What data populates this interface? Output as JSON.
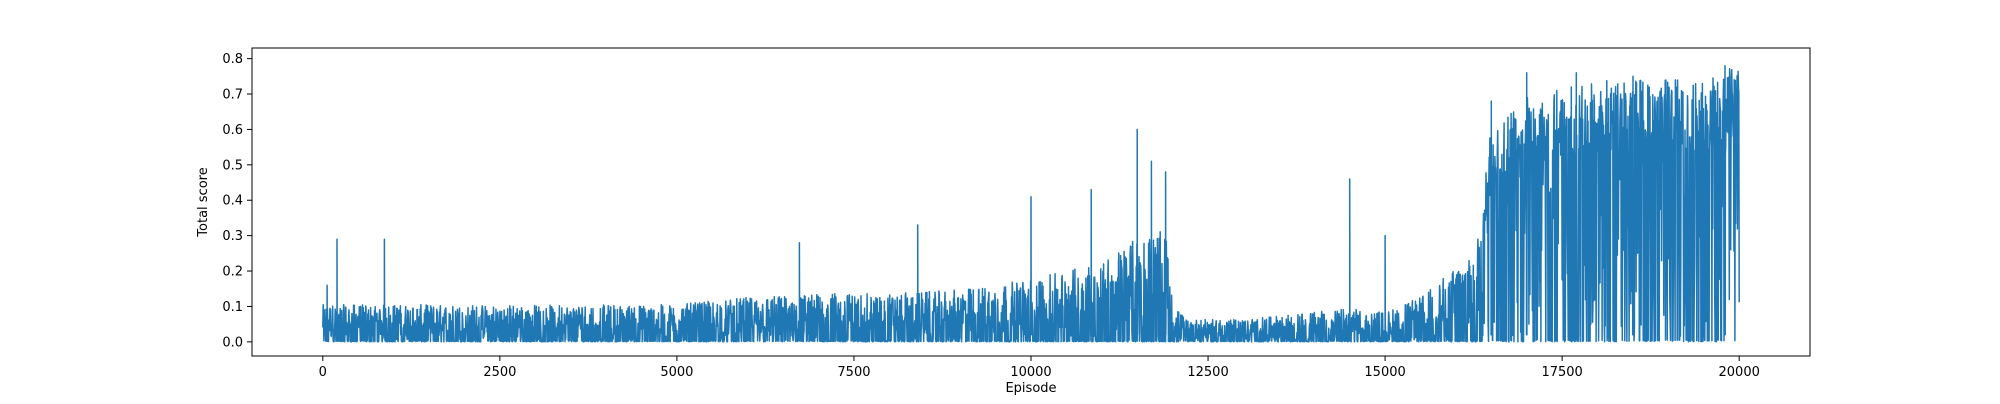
{
  "chart_data": {
    "type": "line",
    "title": "",
    "xlabel": "Episode",
    "ylabel": "Total score",
    "xlim": [
      -1000,
      21000
    ],
    "ylim": [
      -0.04,
      0.83
    ],
    "xticks": [
      0,
      2500,
      5000,
      7500,
      10000,
      12500,
      15000,
      17500,
      20000
    ],
    "xtick_labels": [
      "0",
      "2500",
      "5000",
      "7500",
      "10000",
      "12500",
      "15000",
      "17500",
      "20000"
    ],
    "yticks": [
      0.0,
      0.1,
      0.2,
      0.3,
      0.4,
      0.5,
      0.6,
      0.7,
      0.8
    ],
    "ytick_labels": [
      "0.0",
      "0.1",
      "0.2",
      "0.3",
      "0.4",
      "0.5",
      "0.6",
      "0.7",
      "0.8"
    ],
    "grid": false,
    "legend": "none",
    "series_color": "#1f77b4",
    "x_range": [
      0,
      20000
    ],
    "envelope": {
      "x": [
        0,
        1000,
        2000,
        3000,
        4000,
        5000,
        6000,
        7000,
        8000,
        9000,
        10000,
        10500,
        11000,
        11500,
        11900,
        12000,
        12200,
        13000,
        14000,
        14500,
        15000,
        15500,
        16000,
        16300,
        16500,
        17000,
        17500,
        18000,
        18500,
        19000,
        19500,
        20000
      ],
      "typical_upper": [
        0.1,
        0.1,
        0.1,
        0.1,
        0.1,
        0.1,
        0.12,
        0.13,
        0.13,
        0.14,
        0.17,
        0.19,
        0.22,
        0.28,
        0.3,
        0.1,
        0.06,
        0.06,
        0.08,
        0.09,
        0.08,
        0.12,
        0.2,
        0.28,
        0.58,
        0.66,
        0.69,
        0.7,
        0.71,
        0.71,
        0.72,
        0.74
      ]
    },
    "peaks": [
      {
        "x": 60,
        "y": 0.16
      },
      {
        "x": 200,
        "y": 0.29
      },
      {
        "x": 870,
        "y": 0.29
      },
      {
        "x": 6730,
        "y": 0.28
      },
      {
        "x": 8400,
        "y": 0.33
      },
      {
        "x": 10000,
        "y": 0.41
      },
      {
        "x": 10850,
        "y": 0.43
      },
      {
        "x": 11500,
        "y": 0.6
      },
      {
        "x": 11700,
        "y": 0.51
      },
      {
        "x": 11900,
        "y": 0.48
      },
      {
        "x": 14500,
        "y": 0.46
      },
      {
        "x": 15000,
        "y": 0.3
      },
      {
        "x": 16500,
        "y": 0.68
      },
      {
        "x": 17000,
        "y": 0.76
      },
      {
        "x": 17700,
        "y": 0.76
      },
      {
        "x": 18500,
        "y": 0.75
      },
      {
        "x": 19800,
        "y": 0.78
      }
    ]
  }
}
